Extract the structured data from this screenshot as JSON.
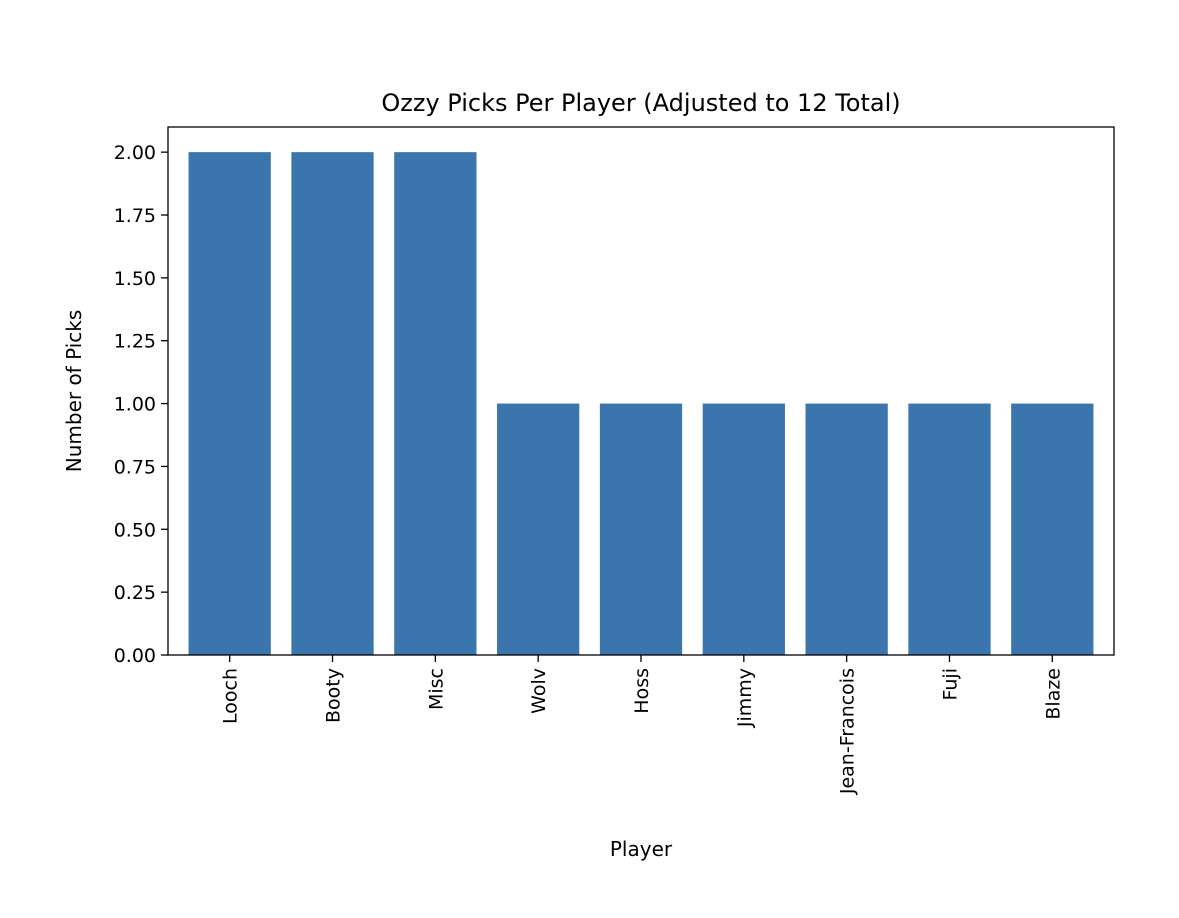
{
  "chart_data": {
    "type": "bar",
    "title": "Ozzy Picks Per Player (Adjusted to 12 Total)",
    "xlabel": "Player",
    "ylabel": "Number of Picks",
    "categories": [
      "Looch",
      "Booty",
      "Misc",
      "Wolv",
      "Hoss",
      "Jimmy",
      "Jean-Francois",
      "Fuji",
      "Blaze"
    ],
    "values": [
      2,
      2,
      2,
      1,
      1,
      1,
      1,
      1,
      1
    ],
    "ylim": [
      0,
      2.1
    ],
    "yticks": [
      "0.00",
      "0.25",
      "0.50",
      "0.75",
      "1.00",
      "1.25",
      "1.50",
      "1.75",
      "2.00"
    ],
    "bar_color": "#3a75ae",
    "grid": false,
    "legend": "none"
  }
}
